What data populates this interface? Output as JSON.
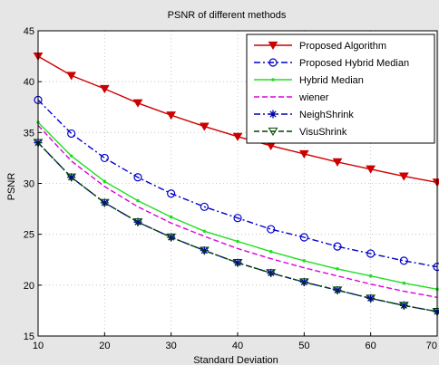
{
  "chart_data": {
    "type": "line",
    "title": "PSNR of different methods",
    "xlabel": "Standard Deviation",
    "ylabel": "PSNR",
    "xlim": [
      10,
      70
    ],
    "ylim": [
      15,
      45
    ],
    "xticks": [
      10,
      20,
      30,
      40,
      50,
      60,
      70
    ],
    "yticks": [
      15,
      20,
      25,
      30,
      35,
      40,
      45
    ],
    "x": [
      10,
      15,
      20,
      25,
      30,
      35,
      40,
      45,
      50,
      55,
      60,
      65,
      70
    ],
    "grid": true,
    "legend_position": "top-right",
    "series": [
      {
        "name": "Proposed Algorithm",
        "color": "#cc0000",
        "marker": "triangle-down",
        "dash": "solid",
        "values": [
          42.5,
          40.6,
          39.3,
          37.9,
          36.7,
          35.6,
          34.6,
          33.7,
          32.9,
          32.1,
          31.4,
          30.7,
          30.1
        ]
      },
      {
        "name": "Proposed Hybrid Median",
        "color": "#0000cc",
        "marker": "circle",
        "dash": "dashdot",
        "values": [
          38.2,
          34.9,
          32.5,
          30.6,
          29.0,
          27.7,
          26.6,
          25.5,
          24.7,
          23.8,
          23.1,
          22.4,
          21.8
        ]
      },
      {
        "name": "Hybrid Median",
        "color": "#22dd22",
        "marker": "point",
        "dash": "solid",
        "values": [
          36.0,
          32.7,
          30.2,
          28.3,
          26.7,
          25.3,
          24.3,
          23.3,
          22.4,
          21.6,
          20.9,
          20.2,
          19.6
        ]
      },
      {
        "name": "wiener",
        "color": "#dd00dd",
        "marker": "none",
        "dash": "dashed",
        "values": [
          35.7,
          32.2,
          29.7,
          27.7,
          26.1,
          24.8,
          23.6,
          22.6,
          21.7,
          20.9,
          20.1,
          19.4,
          18.8
        ]
      },
      {
        "name": "NeighShrink",
        "color": "#0000aa",
        "marker": "star",
        "dash": "dashdot",
        "values": [
          34.0,
          30.6,
          28.1,
          26.2,
          24.7,
          23.4,
          22.2,
          21.2,
          20.3,
          19.5,
          18.7,
          18.0,
          17.4
        ]
      },
      {
        "name": "VisuShrink",
        "color": "#004400",
        "marker": "triangle-down-open",
        "dash": "dashed",
        "values": [
          34.0,
          30.6,
          28.1,
          26.2,
          24.7,
          23.4,
          22.2,
          21.2,
          20.3,
          19.5,
          18.7,
          18.0,
          17.4
        ]
      }
    ]
  }
}
